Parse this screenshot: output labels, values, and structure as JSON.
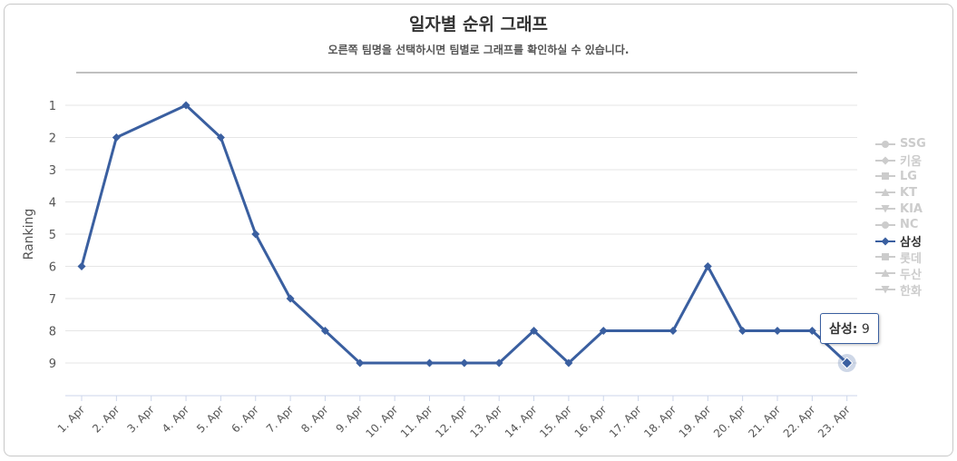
{
  "title": "일자별 순위 그래프",
  "subtitle": "오른쪽 팀명을 선택하시면 팀별로 그래프를 확인하실 수 있습니다.",
  "colors": {
    "series": "#3a5fa0",
    "legend_inactive": "#cccccc",
    "legend_active": "#333333"
  },
  "legend": [
    {
      "name": "SSG",
      "symbol": "circle",
      "active": false
    },
    {
      "name": "키움",
      "symbol": "diamond",
      "active": false
    },
    {
      "name": "LG",
      "symbol": "square",
      "active": false
    },
    {
      "name": "KT",
      "symbol": "triangle",
      "active": false
    },
    {
      "name": "KIA",
      "symbol": "triangle-down",
      "active": false
    },
    {
      "name": "NC",
      "symbol": "circle",
      "active": false
    },
    {
      "name": "삼성",
      "symbol": "diamond",
      "active": true
    },
    {
      "name": "롯데",
      "symbol": "square",
      "active": false
    },
    {
      "name": "두산",
      "symbol": "triangle",
      "active": false
    },
    {
      "name": "한화",
      "symbol": "triangle-down",
      "active": false
    }
  ],
  "tooltip": {
    "series": "삼성",
    "value": "9"
  },
  "chart_data": {
    "type": "line",
    "title": "일자별 순위 그래프",
    "subtitle": "오른쪽 팀명을 선택하시면 팀별로 그래프를 확인하실 수 있습니다.",
    "ylabel": "Ranking",
    "y_reversed": true,
    "ylim": [
      1,
      9
    ],
    "yticks": [
      "1",
      "2",
      "3",
      "4",
      "5",
      "6",
      "7",
      "8",
      "9"
    ],
    "categories": [
      "1. Apr",
      "2. Apr",
      "3. Apr",
      "4. Apr",
      "5. Apr",
      "6. Apr",
      "7. Apr",
      "8. Apr",
      "9. Apr",
      "10. Apr",
      "11. Apr",
      "12. Apr",
      "13. Apr",
      "14. Apr",
      "15. Apr",
      "16. Apr",
      "17. Apr",
      "18. Apr",
      "19. Apr",
      "20. Apr",
      "21. Apr",
      "22. Apr",
      "23. Apr"
    ],
    "series": [
      {
        "name": "삼성",
        "points": [
          {
            "x": "1. Apr",
            "y": 6
          },
          {
            "x": "2. Apr",
            "y": 2
          },
          {
            "x": "4. Apr",
            "y": 1
          },
          {
            "x": "5. Apr",
            "y": 2
          },
          {
            "x": "6. Apr",
            "y": 5
          },
          {
            "x": "7. Apr",
            "y": 7
          },
          {
            "x": "8. Apr",
            "y": 8
          },
          {
            "x": "9. Apr",
            "y": 9
          },
          {
            "x": "11. Apr",
            "y": 9
          },
          {
            "x": "12. Apr",
            "y": 9
          },
          {
            "x": "13. Apr",
            "y": 9
          },
          {
            "x": "14. Apr",
            "y": 8
          },
          {
            "x": "15. Apr",
            "y": 9
          },
          {
            "x": "16. Apr",
            "y": 8
          },
          {
            "x": "18. Apr",
            "y": 8
          },
          {
            "x": "19. Apr",
            "y": 6
          },
          {
            "x": "20. Apr",
            "y": 8
          },
          {
            "x": "21. Apr",
            "y": 8
          },
          {
            "x": "22. Apr",
            "y": 8
          },
          {
            "x": "23. Apr",
            "y": 9
          }
        ]
      }
    ],
    "grid": true,
    "legend_position": "right"
  }
}
